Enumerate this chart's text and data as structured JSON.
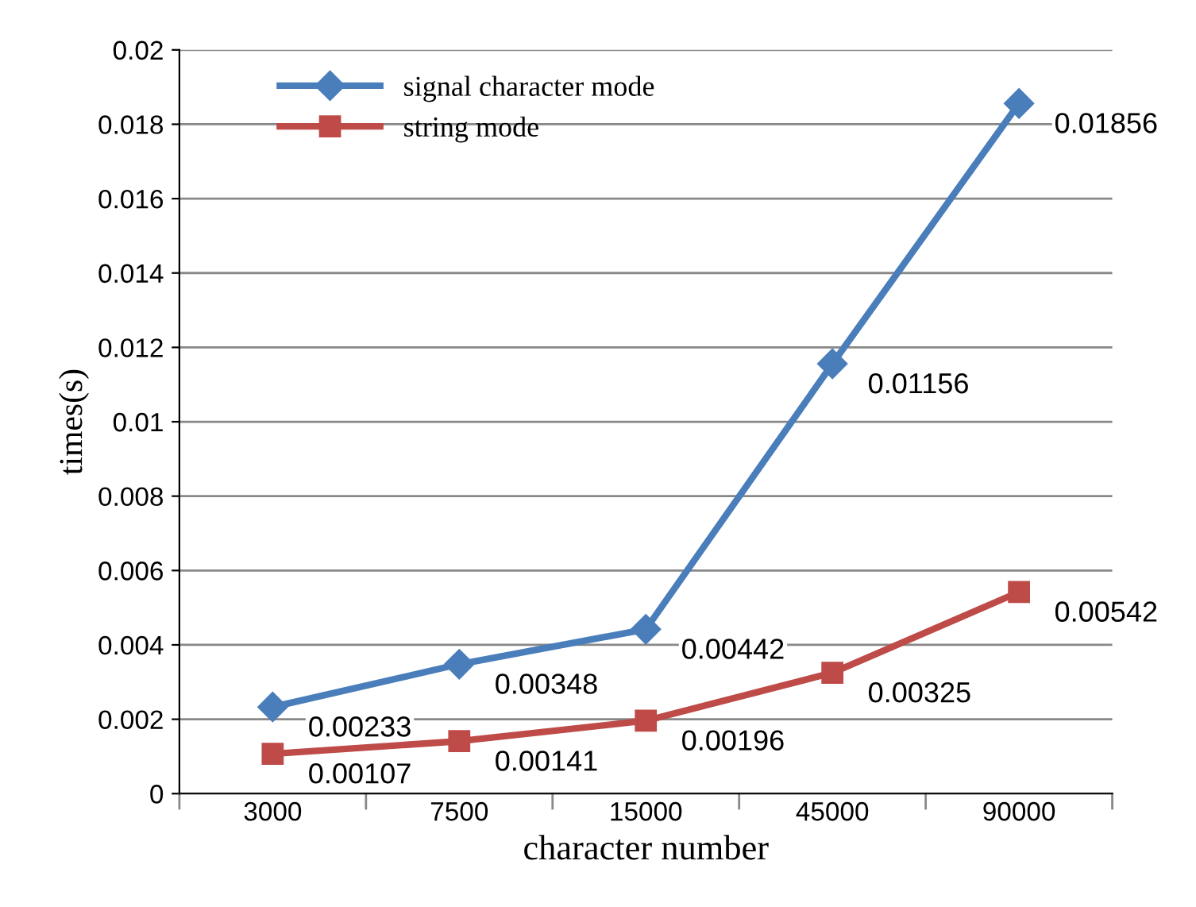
{
  "chart_data": {
    "type": "line",
    "xlabel": "character number",
    "ylabel": "times(s)",
    "categories": [
      "3000",
      "7500",
      "15000",
      "45000",
      "90000"
    ],
    "series": [
      {
        "name": "signal character mode",
        "color": "#4a7ebb",
        "marker": "diamond",
        "values": [
          0.00233,
          0.00348,
          0.00442,
          0.01156,
          0.01856
        ]
      },
      {
        "name": "string mode",
        "color": "#be4b48",
        "marker": "square",
        "values": [
          0.00107,
          0.00141,
          0.00196,
          0.00325,
          0.00542
        ]
      }
    ],
    "ylim": [
      0,
      0.02
    ],
    "yticks": [
      0,
      0.002,
      0.004,
      0.006,
      0.008,
      0.01,
      0.012,
      0.014,
      0.016,
      0.018,
      0.02
    ],
    "grid": "y",
    "legend": "top left",
    "data_labels": true,
    "line_style": "solid"
  }
}
